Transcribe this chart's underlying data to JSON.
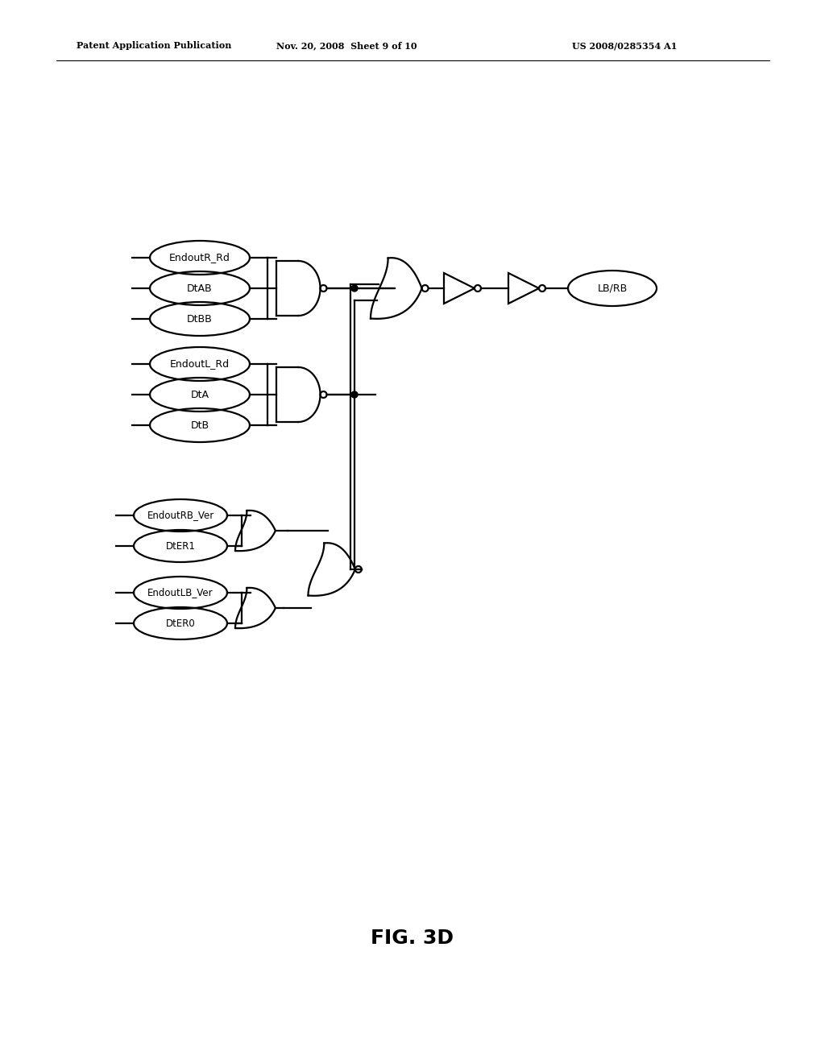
{
  "title": "FIG. 3D",
  "header_left": "Patent Application Publication",
  "header_mid": "Nov. 20, 2008  Sheet 9 of 10",
  "header_right": "US 2008/0285354 A1",
  "background": "#ffffff",
  "inputs_group1": [
    "EndoutR_Rd",
    "DtAB",
    "DtBB"
  ],
  "inputs_group2": [
    "EndoutL_Rd",
    "DtA",
    "DtB"
  ],
  "inputs_group3_top": [
    "EndoutRB_Ver",
    "DtER1"
  ],
  "inputs_group3_bot": [
    "EndoutLB_Ver",
    "DtER0"
  ],
  "output_label": "LB/RB",
  "gate_color": "#000000",
  "line_color": "#000000",
  "line_width": 1.6,
  "bubble_r": 0.04
}
